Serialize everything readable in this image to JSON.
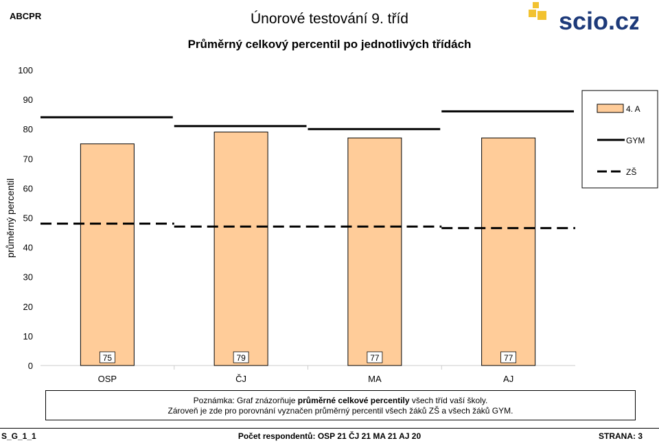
{
  "header": {
    "code": "ABCPR",
    "title": "Únorové testování 9. tříd",
    "logo_text": "scio.cz"
  },
  "chart_data": {
    "type": "bar",
    "title": "Průměrný celkový percentil po jednotlivých třídách",
    "ylabel": "průměrný percentil",
    "xlabel": "",
    "ylim": [
      0,
      100
    ],
    "yticks": [
      0,
      10,
      20,
      30,
      40,
      50,
      60,
      70,
      80,
      90,
      100
    ],
    "categories": [
      "OSP",
      "ČJ",
      "MA",
      "AJ"
    ],
    "series": [
      {
        "name": "4. A",
        "type": "bar",
        "color": "#ffcc99",
        "values": [
          75,
          79,
          77,
          77
        ]
      },
      {
        "name": "GYM",
        "type": "line-solid",
        "color": "#000000",
        "values": [
          84,
          81,
          80,
          86
        ]
      },
      {
        "name": "ZŠ",
        "type": "line-dashed",
        "color": "#000000",
        "values": [
          48,
          47,
          47,
          46.5
        ]
      }
    ],
    "data_labels": [
      "75",
      "79",
      "77",
      "77"
    ],
    "legend_position": "right",
    "grid": false
  },
  "note": {
    "line1_prefix": "Poznámka: Graf znázorňuje ",
    "line1_bold": "průměrné celkové percentily",
    "line1_suffix": " všech tříd vaší školy.",
    "line2": "Zároveň je zde pro porovnání vyznačen průměrný percentil všech žáků ZŠ a všech žáků GYM."
  },
  "footer": {
    "left": "S_G_1_1",
    "middle": "Počet respondentů: OSP 21   ČJ 21   MA 21   AJ 20",
    "right": "STRANA: 3"
  },
  "colors": {
    "bar": "#ffcc99",
    "logo_yellow": "#f2c230",
    "logo_blue": "#1d3a7a"
  }
}
